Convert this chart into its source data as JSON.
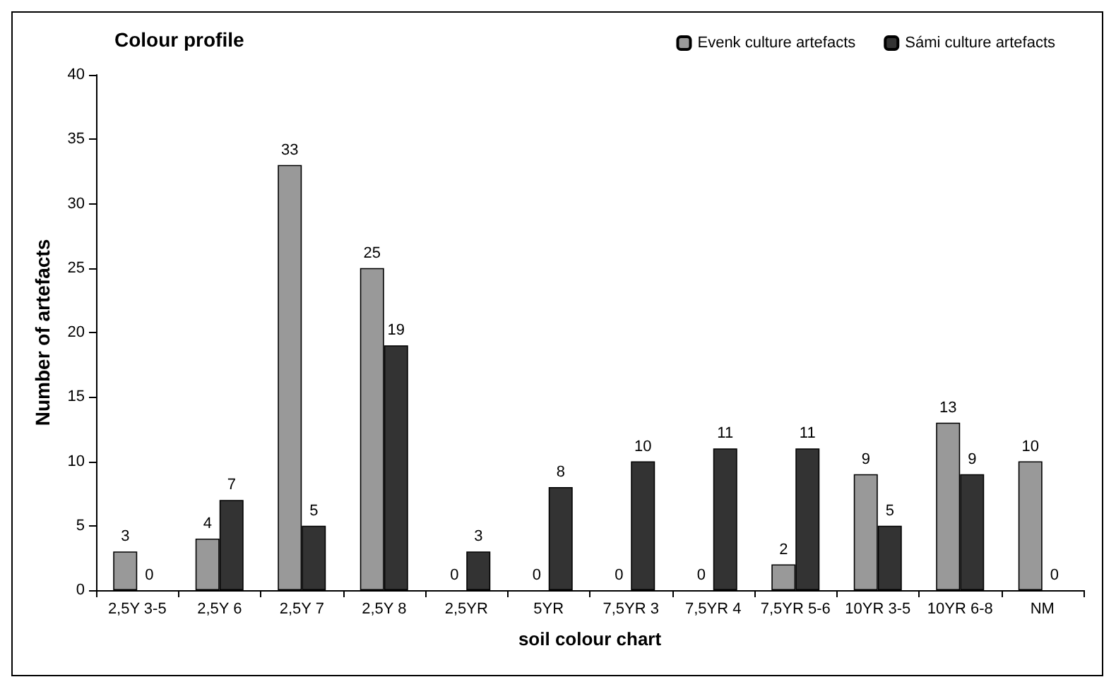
{
  "chart_data": {
    "type": "bar",
    "title": "Colour profile",
    "xlabel": "soil colour chart",
    "ylabel": "Number of artefacts",
    "categories": [
      "2,5Y 3-5",
      "2,5Y 6",
      "2,5Y 7",
      "2,5Y 8",
      "2,5YR",
      "5YR",
      "7,5YR 3",
      "7,5YR 4",
      "7,5YR 5-6",
      "10YR 3-5",
      "10YR 6-8",
      "NM"
    ],
    "series": [
      {
        "name": "Evenk culture artefacts",
        "color": "#999999",
        "values": [
          3,
          4,
          33,
          25,
          0,
          0,
          0,
          0,
          2,
          9,
          13,
          10
        ]
      },
      {
        "name": "Sámi culture artefacts",
        "color": "#333333",
        "values": [
          0,
          7,
          5,
          19,
          3,
          8,
          10,
          11,
          11,
          5,
          9,
          0
        ]
      }
    ],
    "ylim": [
      0,
      40
    ],
    "yticks": [
      0,
      5,
      10,
      15,
      20,
      25,
      30,
      35,
      40
    ],
    "grid": false,
    "legend": "top right",
    "data_labels": true
  }
}
